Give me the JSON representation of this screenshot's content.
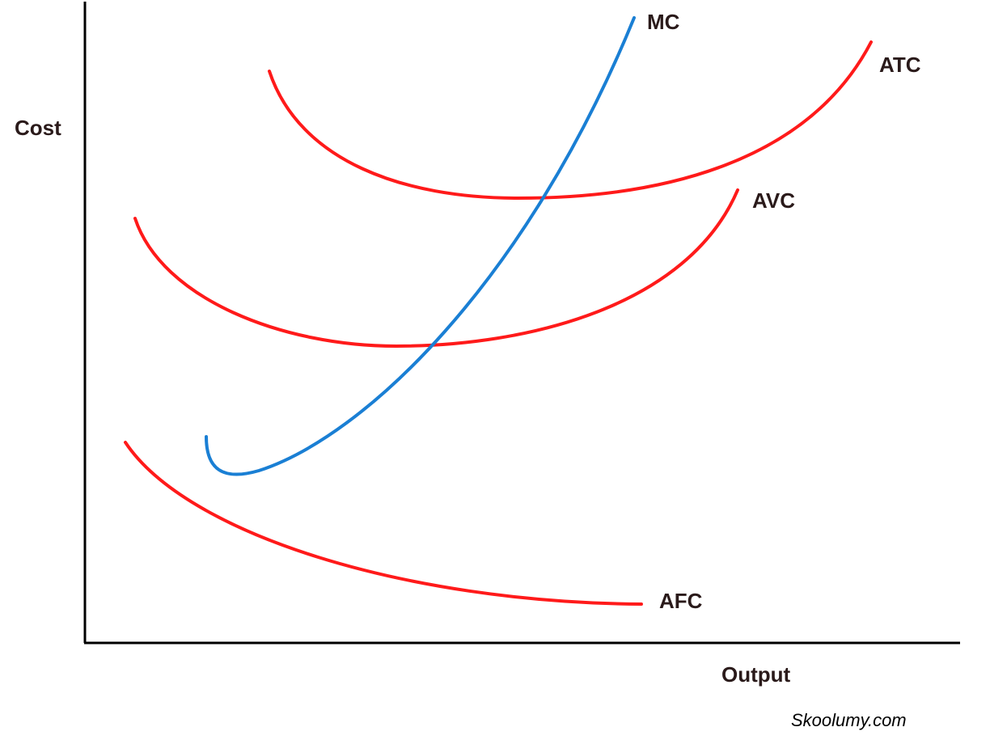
{
  "axes": {
    "y_label": "Cost",
    "x_label": "Output"
  },
  "curves": [
    {
      "label": "MC"
    },
    {
      "label": "ATC"
    },
    {
      "label": "AVC"
    },
    {
      "label": "AFC"
    }
  ],
  "footer": {
    "watermark": "Skoolumy.com"
  }
}
